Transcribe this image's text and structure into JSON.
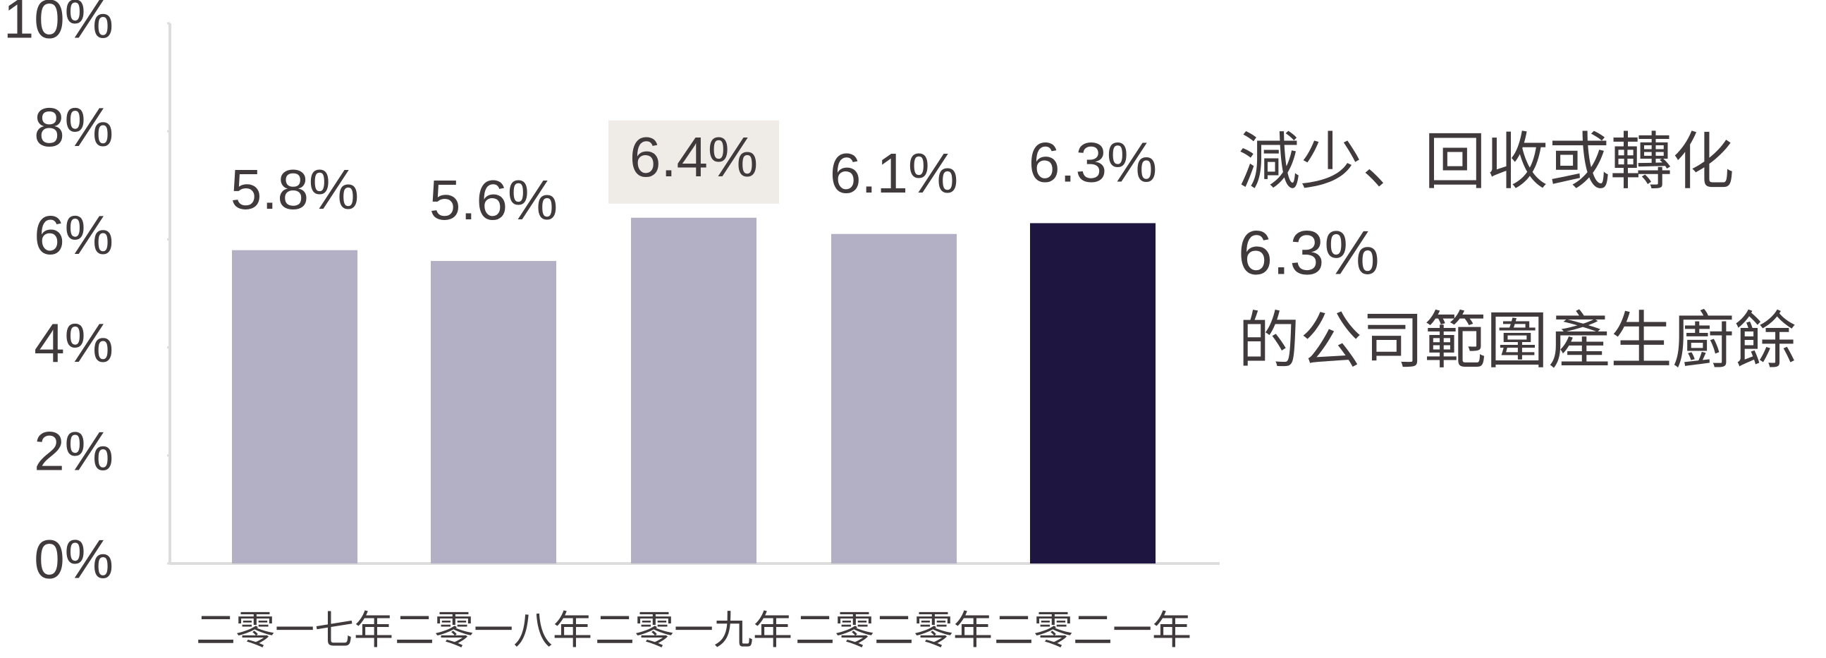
{
  "chart_data": {
    "type": "bar",
    "categories": [
      "二零一七年",
      "二零一八年",
      "二零一九年",
      "二零二零年",
      "二零二一年"
    ],
    "values": [
      5.8,
      5.6,
      6.4,
      6.1,
      6.3
    ],
    "value_labels": [
      "5.8%",
      "5.6%",
      "6.4%",
      "6.1%",
      "6.3%"
    ],
    "colors": [
      "#b3afc5",
      "#b3afc5",
      "#b3afc5",
      "#b3afc5",
      "#1e1641"
    ],
    "value_label_backgrounds": [
      null,
      null,
      "#efece8",
      null,
      null
    ],
    "ylim": [
      0,
      10
    ],
    "yticks": [
      {
        "value": 0,
        "label": "0%"
      },
      {
        "value": 2,
        "label": "2%"
      },
      {
        "value": 4,
        "label": "4%"
      },
      {
        "value": 6,
        "label": "6%"
      },
      {
        "value": 8,
        "label": "8%"
      },
      {
        "value": 10,
        "label": "10%"
      }
    ],
    "annotations": [
      "減少、回收或轉化",
      "6.3%",
      "的公司範圍產生廚餘"
    ]
  }
}
